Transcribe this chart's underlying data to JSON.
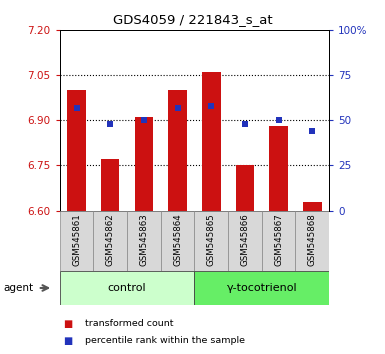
{
  "title": "GDS4059 / 221843_s_at",
  "samples": [
    "GSM545861",
    "GSM545862",
    "GSM545863",
    "GSM545864",
    "GSM545865",
    "GSM545866",
    "GSM545867",
    "GSM545868"
  ],
  "bar_values": [
    7.0,
    6.77,
    6.91,
    7.0,
    7.06,
    6.75,
    6.88,
    6.63
  ],
  "bar_bottom": 6.6,
  "dot_values": [
    57,
    48,
    50,
    57,
    58,
    48,
    50,
    44
  ],
  "ylim_left": [
    6.6,
    7.2
  ],
  "ylim_right": [
    0,
    100
  ],
  "yticks_left": [
    6.6,
    6.75,
    6.9,
    7.05,
    7.2
  ],
  "yticks_right": [
    0,
    25,
    50,
    75,
    100
  ],
  "ytick_labels_right": [
    "0",
    "25",
    "50",
    "75",
    "100%"
  ],
  "hlines": [
    6.75,
    6.9,
    7.05
  ],
  "bar_color": "#cc1111",
  "dot_color": "#2233bb",
  "bar_width": 0.55,
  "group_labels": [
    "control",
    "γ-tocotrienol"
  ],
  "group_ranges": [
    [
      0,
      3
    ],
    [
      4,
      7
    ]
  ],
  "group_colors_light": [
    "#ccffcc",
    "#66ee66"
  ],
  "agent_label": "agent",
  "legend_items": [
    {
      "label": "transformed count",
      "color": "#cc1111"
    },
    {
      "label": "percentile rank within the sample",
      "color": "#2233bb"
    }
  ],
  "left_tick_color": "#cc1111",
  "right_tick_color": "#2233bb",
  "sample_bg": "#d8d8d8",
  "plot_bg": "#ffffff",
  "fig_bg": "#ffffff"
}
